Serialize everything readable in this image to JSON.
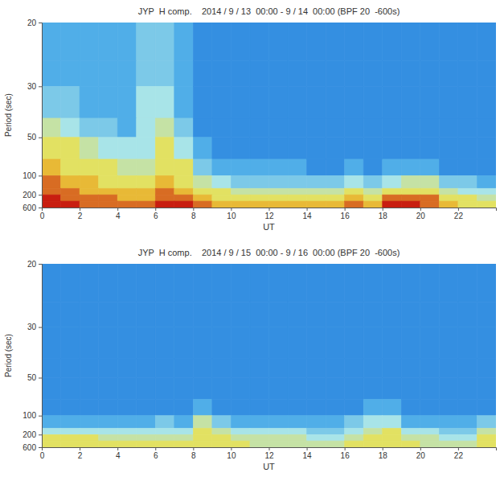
{
  "chart_data": [
    {
      "type": "heatmap",
      "title": "JYP  H comp.    2014 / 9 / 13  00:00 - 9 / 14  00:00 (BPF 20  -600s)",
      "x_label": "UT",
      "y_label": "Period (sec)",
      "xlim": [
        0,
        24
      ],
      "xticks": [
        0,
        2,
        4,
        6,
        8,
        10,
        12,
        14,
        16,
        18,
        20,
        22
      ],
      "ylim": [
        20,
        600
      ],
      "yticks": [
        20,
        30,
        50,
        100,
        200,
        600
      ],
      "x_bins": [
        0,
        1,
        2,
        3,
        4,
        5,
        6,
        7,
        8,
        9,
        10,
        11,
        12,
        13,
        14,
        15,
        16,
        17,
        18,
        19,
        20,
        21,
        22,
        23,
        24
      ],
      "y_bins": [
        20,
        25,
        30,
        40,
        50,
        70,
        100,
        150,
        200,
        300,
        600
      ],
      "zlim": [
        0,
        10
      ],
      "cells": [
        [
          3,
          3,
          3,
          3,
          3,
          4,
          4,
          3,
          2,
          2,
          2,
          2,
          2,
          2,
          2,
          2,
          2,
          2,
          2,
          2,
          2,
          2,
          2,
          2
        ],
        [
          3,
          3,
          3,
          3,
          3,
          4,
          4,
          3,
          2,
          2,
          2,
          2,
          2,
          2,
          2,
          2,
          2,
          2,
          2,
          2,
          2,
          2,
          2,
          2
        ],
        [
          4,
          4,
          3,
          3,
          3,
          5,
          5,
          3,
          2,
          2,
          2,
          2,
          2,
          2,
          2,
          2,
          2,
          2,
          2,
          2,
          2,
          2,
          2,
          2
        ],
        [
          6,
          5,
          4,
          4,
          3,
          5,
          6,
          4,
          2,
          2,
          2,
          2,
          2,
          2,
          2,
          2,
          2,
          2,
          2,
          2,
          2,
          2,
          2,
          2
        ],
        [
          7,
          7,
          6,
          5,
          5,
          5,
          7,
          5,
          3,
          2,
          2,
          2,
          2,
          2,
          2,
          2,
          2,
          2,
          2,
          2,
          2,
          2,
          2,
          2
        ],
        [
          8,
          7,
          7,
          7,
          6,
          6,
          7,
          7,
          4,
          3,
          3,
          3,
          3,
          3,
          2,
          2,
          3,
          2,
          3,
          3,
          3,
          2,
          2,
          2
        ],
        [
          9,
          8,
          8,
          7,
          7,
          7,
          8,
          7,
          6,
          5,
          4,
          4,
          4,
          4,
          4,
          4,
          5,
          4,
          5,
          6,
          6,
          4,
          4,
          3
        ],
        [
          9,
          9,
          8,
          8,
          8,
          8,
          9,
          8,
          7,
          7,
          6,
          6,
          6,
          6,
          6,
          6,
          7,
          6,
          7,
          7,
          7,
          6,
          5,
          5
        ],
        [
          10,
          9,
          9,
          9,
          8,
          8,
          9,
          9,
          8,
          7,
          7,
          7,
          7,
          7,
          7,
          7,
          8,
          7,
          9,
          9,
          9,
          7,
          7,
          6
        ],
        [
          10,
          10,
          9,
          9,
          9,
          9,
          10,
          10,
          9,
          8,
          8,
          8,
          8,
          8,
          8,
          8,
          9,
          8,
          10,
          10,
          9,
          8,
          7,
          7
        ]
      ]
    },
    {
      "type": "heatmap",
      "title": "JYP  H comp.    2014 / 9 / 15  00:00 - 9 / 16  00:00 (BPF 20  -600s)",
      "x_label": "UT",
      "y_label": "Period (sec)",
      "xlim": [
        0,
        24
      ],
      "xticks": [
        0,
        2,
        4,
        6,
        8,
        10,
        12,
        14,
        16,
        18,
        20,
        22
      ],
      "ylim": [
        20,
        600
      ],
      "yticks": [
        20,
        30,
        50,
        100,
        200,
        600
      ],
      "x_bins": [
        0,
        1,
        2,
        3,
        4,
        5,
        6,
        7,
        8,
        9,
        10,
        11,
        12,
        13,
        14,
        15,
        16,
        17,
        18,
        19,
        20,
        21,
        22,
        23,
        24
      ],
      "y_bins": [
        20,
        25,
        30,
        40,
        50,
        70,
        100,
        150,
        200,
        300,
        600
      ],
      "zlim": [
        0,
        10
      ],
      "cells": [
        [
          2,
          2,
          2,
          2,
          2,
          2,
          2,
          2,
          2,
          2,
          2,
          2,
          2,
          2,
          2,
          2,
          2,
          2,
          2,
          2,
          2,
          2,
          2,
          2
        ],
        [
          2,
          2,
          2,
          2,
          2,
          2,
          2,
          2,
          2,
          2,
          2,
          2,
          2,
          2,
          2,
          2,
          2,
          2,
          2,
          2,
          2,
          2,
          2,
          2
        ],
        [
          2,
          2,
          2,
          2,
          2,
          2,
          2,
          2,
          2,
          2,
          2,
          2,
          2,
          2,
          2,
          2,
          2,
          2,
          2,
          2,
          2,
          2,
          2,
          2
        ],
        [
          2,
          2,
          2,
          2,
          2,
          2,
          2,
          2,
          2,
          2,
          2,
          2,
          2,
          2,
          2,
          2,
          2,
          2,
          2,
          2,
          2,
          2,
          2,
          2
        ],
        [
          2,
          2,
          2,
          2,
          2,
          2,
          2,
          2,
          2,
          2,
          2,
          2,
          2,
          2,
          2,
          2,
          2,
          2,
          2,
          2,
          2,
          2,
          2,
          2
        ],
        [
          2,
          2,
          2,
          2,
          2,
          2,
          2,
          2,
          3,
          2,
          2,
          2,
          2,
          2,
          2,
          2,
          2,
          3,
          3,
          2,
          2,
          2,
          2,
          2
        ],
        [
          3,
          3,
          3,
          3,
          3,
          3,
          4,
          3,
          6,
          4,
          3,
          3,
          3,
          3,
          3,
          3,
          4,
          5,
          5,
          3,
          3,
          3,
          3,
          4
        ],
        [
          5,
          5,
          5,
          5,
          5,
          5,
          5,
          5,
          7,
          6,
          5,
          5,
          5,
          5,
          4,
          4,
          5,
          6,
          7,
          5,
          5,
          4,
          4,
          6
        ],
        [
          7,
          7,
          7,
          6,
          6,
          6,
          6,
          6,
          7,
          7,
          6,
          6,
          6,
          6,
          5,
          5,
          6,
          7,
          7,
          6,
          6,
          5,
          5,
          7
        ],
        [
          7,
          7,
          7,
          7,
          7,
          7,
          7,
          7,
          7,
          7,
          7,
          6,
          6,
          6,
          6,
          6,
          7,
          7,
          7,
          7,
          6,
          6,
          6,
          7
        ]
      ]
    }
  ]
}
